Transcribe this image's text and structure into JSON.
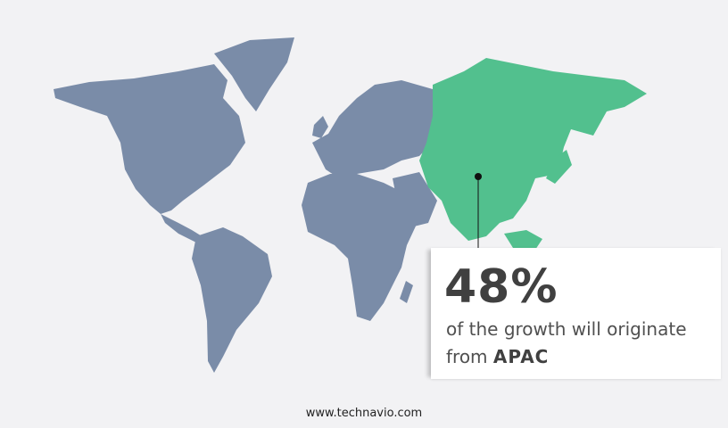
{
  "colors": {
    "background": "#f2f2f4",
    "land": "#7a8ca8",
    "highlight_region": "#52c08e",
    "text": "#404040"
  },
  "callout": {
    "stat": "48%",
    "description": "of the growth will originate",
    "from_label": "from",
    "region": "APAC"
  },
  "footer": {
    "website": "www.technavio.com"
  }
}
